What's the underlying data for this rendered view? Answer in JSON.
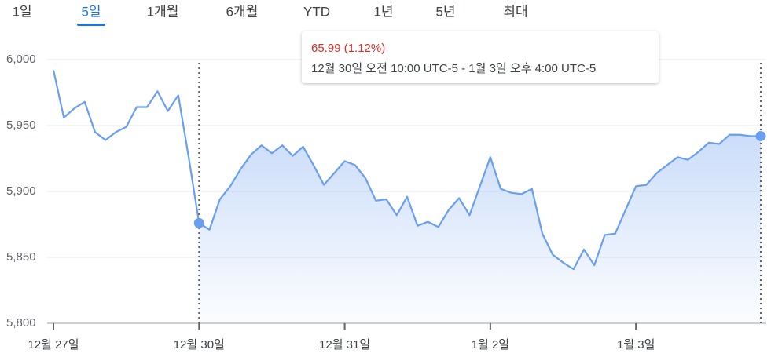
{
  "tabs": [
    "1일",
    "5일",
    "1개월",
    "6개월",
    "YTD",
    "1년",
    "5년",
    "최대"
  ],
  "active_tab": "5일",
  "chart_data": {
    "type": "line",
    "x": [
      0,
      1,
      2,
      3,
      4,
      5,
      6,
      7,
      8,
      9,
      10,
      11,
      12,
      13,
      14,
      15,
      16,
      17,
      18,
      19,
      20,
      21,
      22,
      23,
      24,
      25,
      26,
      27,
      28,
      29,
      30,
      31,
      32,
      33,
      34,
      35,
      36,
      37,
      38,
      39,
      40,
      41,
      42,
      43,
      44,
      45,
      46,
      47,
      48,
      49,
      50,
      51,
      52,
      53,
      54,
      55,
      56,
      57,
      58,
      59,
      60,
      61,
      62,
      63,
      64,
      65,
      66,
      67,
      68
    ],
    "series": [
      {
        "color": "#6a9ef0",
        "values": [
          5992,
          5956,
          5963,
          5968,
          5945,
          5939,
          5945,
          5949,
          5964,
          5964,
          5976,
          5961,
          5973,
          5926,
          5876,
          5871,
          5894,
          5904,
          5917,
          5928,
          5935,
          5929,
          5935,
          5927,
          5934,
          5920,
          5905,
          5914,
          5923,
          5920,
          5910,
          5893,
          5894,
          5882,
          5896,
          5874,
          5877,
          5873,
          5886,
          5895,
          5882,
          5904,
          5926,
          5902,
          5899,
          5898,
          5902,
          5868,
          5852,
          5846,
          5841,
          5856,
          5844,
          5867,
          5868,
          5886,
          5904,
          5905,
          5914,
          5920,
          5926,
          5924,
          5930,
          5937,
          5936,
          5943,
          5943,
          5942,
          5942
        ]
      }
    ],
    "xlim": [
      0,
      68
    ],
    "xticks": [
      {
        "value": 0,
        "label": "12월 27일"
      },
      {
        "value": 14,
        "label": "12월 30일"
      },
      {
        "value": 28,
        "label": "12월 31일"
      },
      {
        "value": 42,
        "label": "1월 2일"
      },
      {
        "value": 56,
        "label": "1월 3일"
      }
    ],
    "ylim": [
      5800,
      6000
    ],
    "yticks": [
      {
        "value": 5800,
        "label": "5,800"
      },
      {
        "value": 5850,
        "label": "5,850"
      },
      {
        "value": 5900,
        "label": "5,900"
      },
      {
        "value": 5950,
        "label": "5,950"
      },
      {
        "value": 6000,
        "label": "6,000"
      }
    ],
    "grid": true,
    "selection_x": [
      14,
      68
    ],
    "tooltip": {
      "change": "65.99 (1.12%)",
      "range": "12월 30일 오전 10:00 UTC-5 - 1월 3일 오후 4:00 UTC-5"
    }
  }
}
